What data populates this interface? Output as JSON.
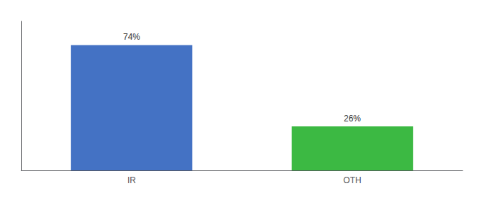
{
  "chart_data": {
    "type": "bar",
    "categories": [
      "IR",
      "OTH"
    ],
    "values": [
      74,
      26
    ],
    "value_labels": [
      "74%",
      "26%"
    ],
    "colors": [
      "#4472c4",
      "#3cb943"
    ],
    "ylim": [
      0,
      88
    ],
    "data_labels": true,
    "tick_labels": "x",
    "grid": false
  }
}
